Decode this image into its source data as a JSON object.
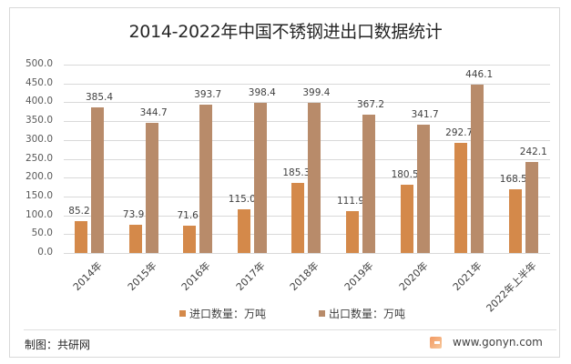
{
  "chart_data": {
    "type": "bar",
    "title": "2014-2022年中国不锈钢进出口数据统计",
    "xlabel": "",
    "ylabel": "",
    "ylim": [
      0,
      500
    ],
    "yticks": [
      "0.0",
      "50.0",
      "100.0",
      "150.0",
      "200.0",
      "250.0",
      "300.0",
      "350.0",
      "400.0",
      "450.0",
      "500.0"
    ],
    "grid": true,
    "legend_position": "bottom",
    "categories": [
      "2014年",
      "2015年",
      "2016年",
      "2017年",
      "2018年",
      "2019年",
      "2020年",
      "2021年",
      "2022年上半年"
    ],
    "series": [
      {
        "name": "进口数量：万吨",
        "color": "#d4894a",
        "values": [
          85.2,
          73.9,
          71.6,
          115.0,
          185.3,
          111.9,
          180.5,
          292.7,
          168.5
        ],
        "labels": [
          "85.2",
          "73.9",
          "71.6",
          "115.0",
          "185.3",
          "111.9",
          "180.5",
          "292.7",
          "168.5"
        ]
      },
      {
        "name": "出口数量：万吨",
        "color": "#b88b6a",
        "values": [
          385.4,
          344.7,
          393.7,
          398.4,
          399.4,
          367.2,
          341.7,
          446.1,
          242.1
        ],
        "labels": [
          "385.4",
          "344.7",
          "393.7",
          "398.4",
          "399.4",
          "367.2",
          "341.7",
          "446.1",
          "242.1"
        ]
      }
    ]
  },
  "footer": {
    "source": "制图：共研网",
    "website": "www.gonyn.com"
  }
}
